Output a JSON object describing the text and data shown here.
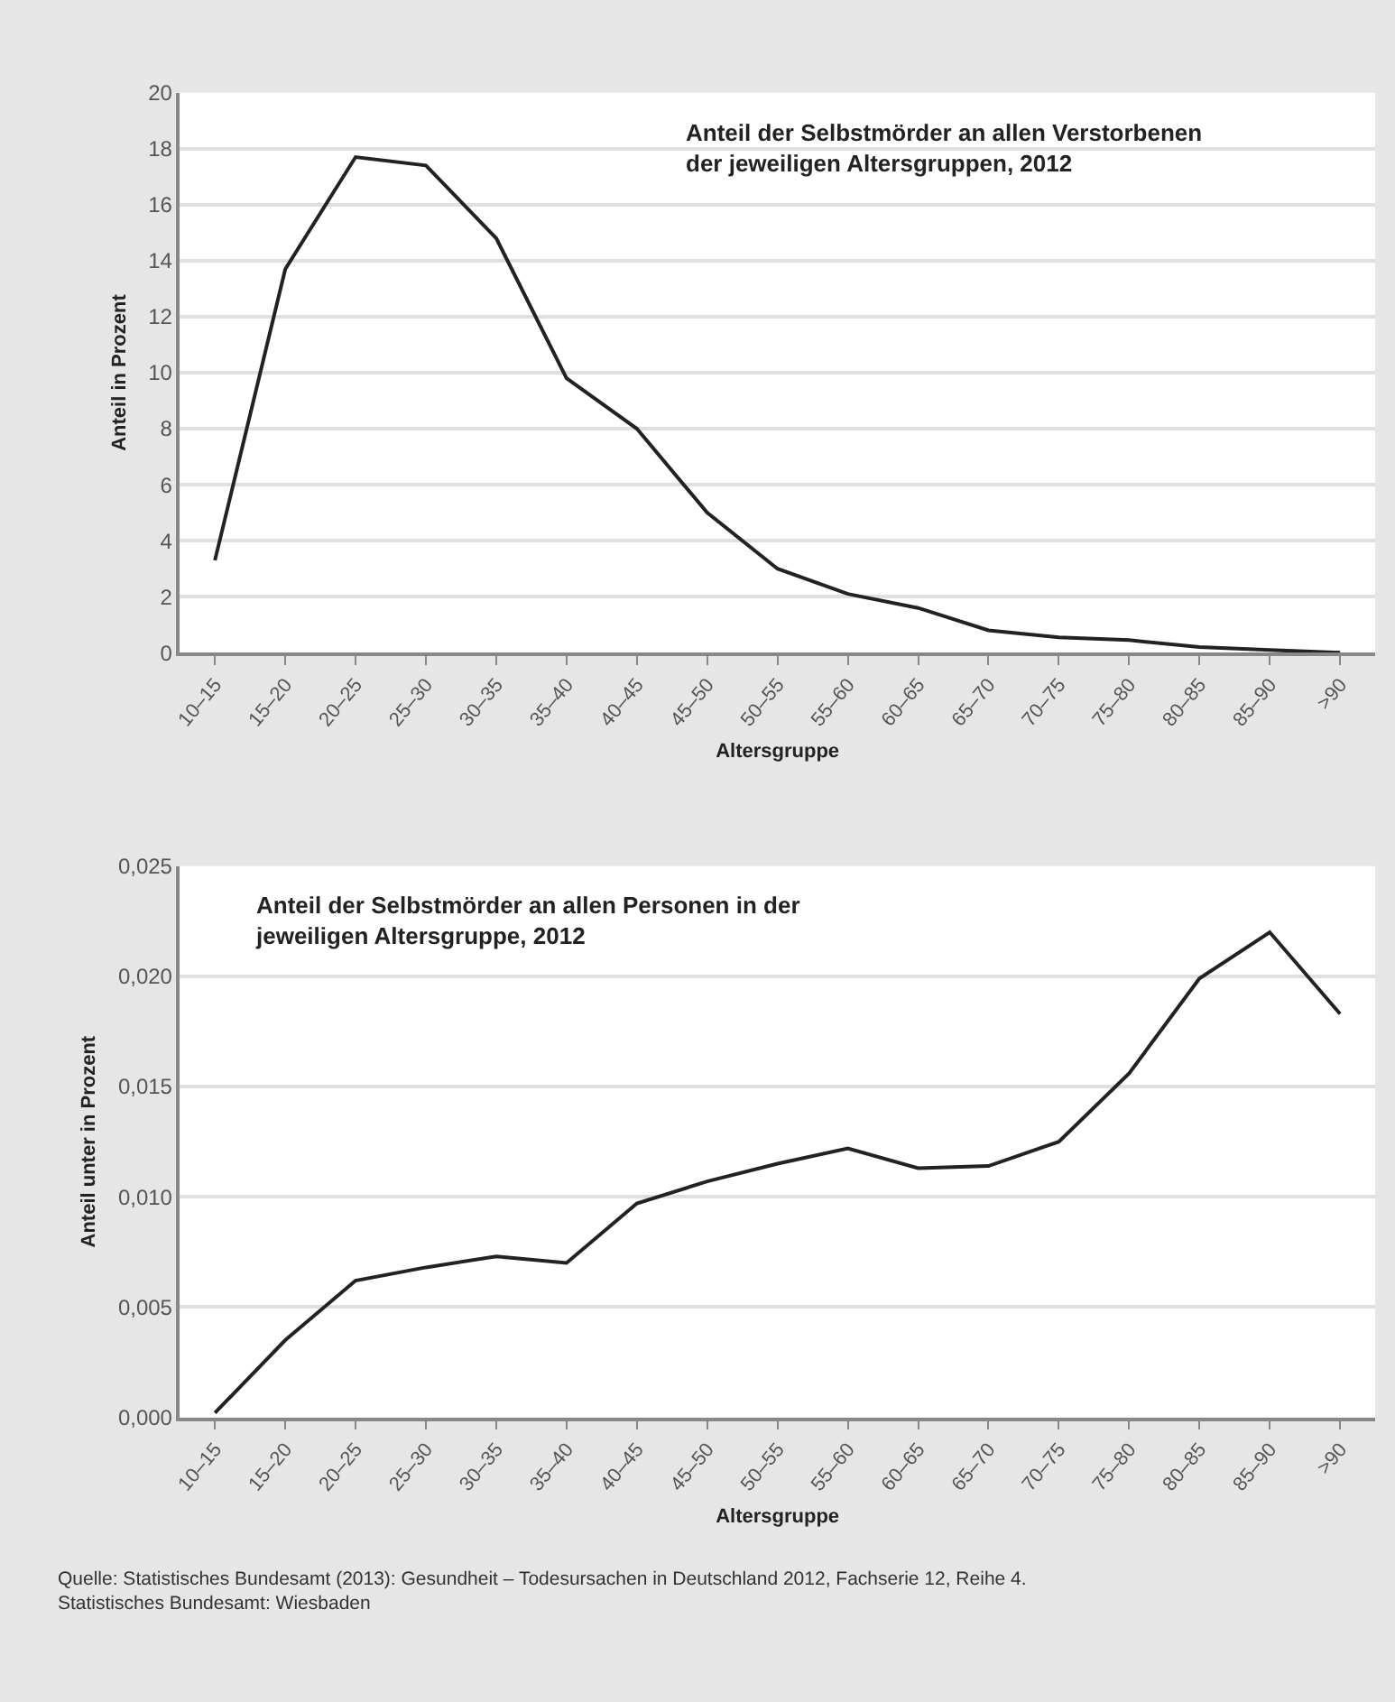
{
  "chart_data": [
    {
      "type": "line",
      "title": "Anteil der Selbstmörder an allen Verstorbenen\nder jeweiligen Altersgruppen, 2012",
      "xlabel": "Altersgruppe",
      "ylabel": "Anteil in Prozent",
      "categories": [
        "10–15",
        "15–20",
        "20–25",
        "25–30",
        "30–35",
        "35–40",
        "40–45",
        "45–50",
        "50–55",
        "55–60",
        "60–65",
        "65–70",
        "70–75",
        "75–80",
        "80–85",
        "85–90",
        ">90"
      ],
      "series": [
        {
          "color": "#222222",
          "values": [
            3.3,
            13.7,
            17.7,
            17.4,
            14.8,
            9.8,
            8.0,
            5.0,
            3.0,
            2.1,
            1.6,
            0.8,
            0.55,
            0.45,
            0.2,
            0.1,
            0.0
          ]
        }
      ],
      "ylim": [
        0,
        20
      ],
      "yticks": [
        0,
        2,
        4,
        6,
        8,
        10,
        12,
        14,
        16,
        18,
        20
      ],
      "grid": "y",
      "marker": "none",
      "line_style": "solid"
    },
    {
      "type": "line",
      "title": "Anteil der Selbstmörder an allen Personen in der\njeweiligen Altersgruppe, 2012",
      "xlabel": "Altersgruppe",
      "ylabel": "Anteil unter in Prozent",
      "categories": [
        "10–15",
        "15–20",
        "20–25",
        "25–30",
        "30–35",
        "35–40",
        "40–45",
        "45–50",
        "50–55",
        "55–60",
        "60–65",
        "65–70",
        "70–75",
        "75–80",
        "80–85",
        "85–90",
        ">90"
      ],
      "series": [
        {
          "color": "#222222",
          "values": [
            0.0002,
            0.0035,
            0.0062,
            0.0068,
            0.0073,
            0.007,
            0.0097,
            0.0107,
            0.0115,
            0.0122,
            0.0113,
            0.0114,
            0.0125,
            0.0156,
            0.0199,
            0.022,
            0.0183
          ]
        }
      ],
      "ylim": [
        0,
        0.025
      ],
      "yticks": [
        {
          "value": 0,
          "label": "0,000"
        },
        {
          "value": 0.005,
          "label": "0,005"
        },
        {
          "value": 0.01,
          "label": "0,010"
        },
        {
          "value": 0.015,
          "label": "0,015"
        },
        {
          "value": 0.02,
          "label": "0,020"
        },
        {
          "value": 0.025,
          "label": "0,025"
        }
      ],
      "grid": "y",
      "marker": "none",
      "line_style": "solid",
      "annotations": [
        "Quelle: Statistisches Bundesamt (2013): Gesundheit – Todesursachen in Deutschland 2012, Fachserie 12, Reihe 4.\nStatistisches Bundesamt: Wiesbaden"
      ]
    }
  ]
}
